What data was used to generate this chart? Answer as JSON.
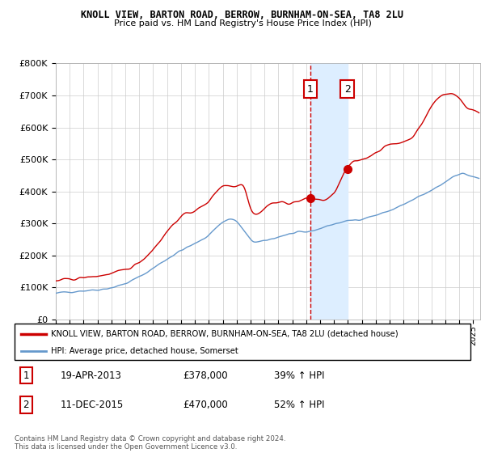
{
  "title": "KNOLL VIEW, BARTON ROAD, BERROW, BURNHAM-ON-SEA, TA8 2LU",
  "subtitle": "Price paid vs. HM Land Registry's House Price Index (HPI)",
  "red_line_color": "#cc0000",
  "blue_line_color": "#6699cc",
  "highlight_color": "#ddeeff",
  "dashed_line_color": "#cc0000",
  "ylim_min": 0,
  "ylim_max": 800000,
  "sale1_year_idx": 218,
  "sale1_value": 378000,
  "sale2_year_idx": 240,
  "sale2_value": 470000,
  "legend_label_red": "KNOLL VIEW, BARTON ROAD, BERROW, BURNHAM-ON-SEA, TA8 2LU (detached house)",
  "legend_label_blue": "HPI: Average price, detached house, Somerset",
  "sale1_label": "1",
  "sale2_label": "2",
  "sale1_date": "19-APR-2013",
  "sale1_price": "£378,000",
  "sale1_hpi": "39% ↑ HPI",
  "sale2_date": "11-DEC-2015",
  "sale2_price": "£470,000",
  "sale2_hpi": "52% ↑ HPI",
  "footer": "Contains HM Land Registry data © Crown copyright and database right 2024.\nThis data is licensed under the Open Government Licence v3.0."
}
